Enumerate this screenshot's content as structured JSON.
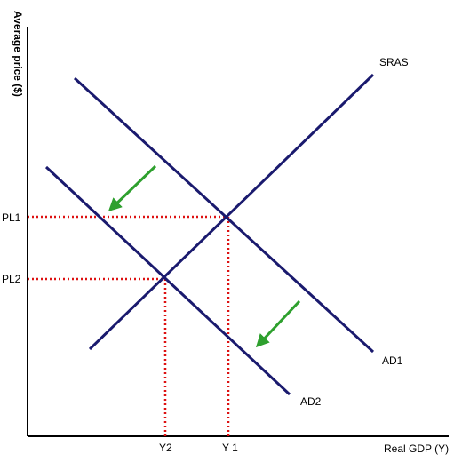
{
  "axes": {
    "y_title": "Average price ($)",
    "x_title": "Real GDP (Y)"
  },
  "curves": {
    "sras": "SRAS",
    "ad1": "AD1",
    "ad2": "AD2"
  },
  "price_levels": {
    "pl1": "PL1",
    "pl2": "PL2"
  },
  "outputs": {
    "y2": "Y2",
    "y1": "Y 1"
  },
  "colors": {
    "axis": "#000000",
    "curve": "#1a1a6e",
    "guide": "#dd1111",
    "arrow": "#2ea02e"
  },
  "arrows": [
    "arrow-down-left",
    "arrow-down-left"
  ]
}
